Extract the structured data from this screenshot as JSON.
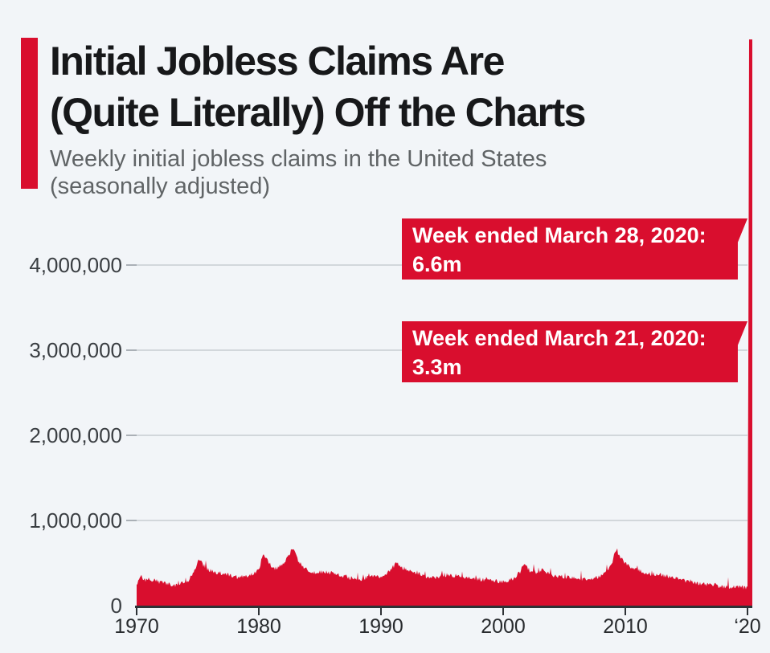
{
  "header": {
    "title": "Initial Jobless Claims Are\n(Quite Literally) Off the Charts",
    "subtitle": "Weekly initial jobless claims in the United States\n(seasonally adjusted)"
  },
  "theme": {
    "background": "#f2f5f8",
    "accent_red": "#d90e2e",
    "title_color": "#17181a",
    "subtitle_color": "#606466",
    "gridline_color": "#d2d7db",
    "axis_color": "#2e3236",
    "callout_text_color": "#ffffff"
  },
  "chart_data": {
    "type": "area",
    "title": "Initial Jobless Claims Are (Quite Literally) Off the Charts",
    "subtitle": "Weekly initial jobless claims in the United States (seasonally adjusted)",
    "xlabel": "",
    "ylabel": "",
    "grid": "horizontal",
    "legend": "none",
    "x_range": [
      1970,
      2020.4
    ],
    "ylim": [
      0,
      4300000
    ],
    "y_axis": {
      "ticks": [
        {
          "value": 4000000,
          "label": "4,000,000"
        },
        {
          "value": 3000000,
          "label": "3,000,000"
        },
        {
          "value": 2000000,
          "label": "2,000,000"
        },
        {
          "value": 1000000,
          "label": "1,000,000"
        },
        {
          "value": 0,
          "label": "0"
        }
      ]
    },
    "x_axis": {
      "ticks": [
        {
          "year": 1970,
          "label": "1970"
        },
        {
          "year": 1980,
          "label": "1980"
        },
        {
          "year": 1990,
          "label": "1990"
        },
        {
          "year": 2000,
          "label": "2000"
        },
        {
          "year": 2010,
          "label": "2010"
        },
        {
          "year": 2020,
          "label": "‘20"
        }
      ]
    },
    "annotations": [
      {
        "lines": [
          "Week ended March 28, 2020:",
          "6.6m"
        ],
        "value_millions": 6.65
      },
      {
        "lines": [
          "Week ended March 21, 2020:",
          "3.3m"
        ],
        "value_millions": 3.31
      }
    ],
    "series": [
      {
        "name": "Weekly initial jobless claims (seasonally adjusted), millions",
        "points_year_value_millions": [
          [
            1970.0,
            0.25
          ],
          [
            1970.3,
            0.33
          ],
          [
            1970.7,
            0.3
          ],
          [
            1971.0,
            0.31
          ],
          [
            1971.5,
            0.29
          ],
          [
            1972.0,
            0.27
          ],
          [
            1972.6,
            0.25
          ],
          [
            1973.2,
            0.24
          ],
          [
            1973.8,
            0.27
          ],
          [
            1974.3,
            0.3
          ],
          [
            1974.8,
            0.42
          ],
          [
            1975.1,
            0.55
          ],
          [
            1975.4,
            0.48
          ],
          [
            1975.9,
            0.42
          ],
          [
            1976.4,
            0.39
          ],
          [
            1977.0,
            0.38
          ],
          [
            1977.6,
            0.36
          ],
          [
            1978.2,
            0.33
          ],
          [
            1978.9,
            0.34
          ],
          [
            1979.5,
            0.37
          ],
          [
            1980.0,
            0.43
          ],
          [
            1980.4,
            0.61
          ],
          [
            1980.8,
            0.5
          ],
          [
            1981.2,
            0.43
          ],
          [
            1981.7,
            0.46
          ],
          [
            1982.2,
            0.53
          ],
          [
            1982.7,
            0.66
          ],
          [
            1982.9,
            0.63
          ],
          [
            1983.3,
            0.5
          ],
          [
            1983.8,
            0.43
          ],
          [
            1984.5,
            0.38
          ],
          [
            1985.2,
            0.39
          ],
          [
            1986.0,
            0.38
          ],
          [
            1986.8,
            0.35
          ],
          [
            1987.5,
            0.32
          ],
          [
            1988.3,
            0.31
          ],
          [
            1989.0,
            0.33
          ],
          [
            1989.8,
            0.34
          ],
          [
            1990.5,
            0.37
          ],
          [
            1991.0,
            0.46
          ],
          [
            1991.3,
            0.49
          ],
          [
            1991.8,
            0.44
          ],
          [
            1992.3,
            0.42
          ],
          [
            1993.0,
            0.37
          ],
          [
            1993.8,
            0.34
          ],
          [
            1994.5,
            0.33
          ],
          [
            1995.2,
            0.36
          ],
          [
            1996.0,
            0.35
          ],
          [
            1997.0,
            0.32
          ],
          [
            1998.0,
            0.31
          ],
          [
            1999.0,
            0.29
          ],
          [
            2000.0,
            0.28
          ],
          [
            2000.8,
            0.31
          ],
          [
            2001.4,
            0.4
          ],
          [
            2001.75,
            0.49
          ],
          [
            2002.2,
            0.4
          ],
          [
            2002.8,
            0.39
          ],
          [
            2003.3,
            0.42
          ],
          [
            2003.9,
            0.36
          ],
          [
            2004.6,
            0.34
          ],
          [
            2005.4,
            0.33
          ],
          [
            2006.2,
            0.3
          ],
          [
            2007.0,
            0.31
          ],
          [
            2007.8,
            0.33
          ],
          [
            2008.4,
            0.38
          ],
          [
            2008.9,
            0.5
          ],
          [
            2009.2,
            0.65
          ],
          [
            2009.5,
            0.59
          ],
          [
            2009.9,
            0.5
          ],
          [
            2010.5,
            0.45
          ],
          [
            2011.2,
            0.41
          ],
          [
            2012.0,
            0.37
          ],
          [
            2012.8,
            0.36
          ],
          [
            2013.5,
            0.34
          ],
          [
            2014.3,
            0.31
          ],
          [
            2015.0,
            0.28
          ],
          [
            2016.0,
            0.26
          ],
          [
            2017.0,
            0.24
          ],
          [
            2018.0,
            0.22
          ],
          [
            2019.0,
            0.215
          ],
          [
            2019.8,
            0.21
          ],
          [
            2020.02,
            0.22
          ],
          [
            2020.05,
            0.28
          ],
          [
            2020.07,
            3.31
          ],
          [
            2020.1,
            6.65
          ],
          [
            2020.39,
            6.65
          ]
        ]
      }
    ],
    "style": {
      "area_color": "#d90e2e",
      "noise_amplitude_millions": 0.05
    }
  }
}
